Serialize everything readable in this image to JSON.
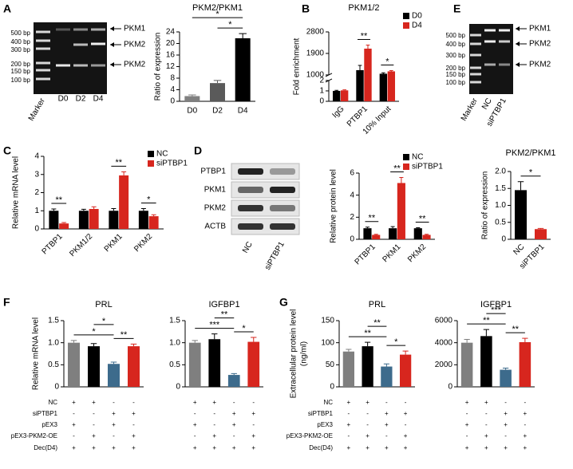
{
  "panel_labels": [
    "A",
    "B",
    "C",
    "D",
    "E",
    "F",
    "G"
  ],
  "gels": [
    {
      "markers": [
        "500 bp",
        "400 bp",
        "300 bp",
        "200 bp",
        "150 bp",
        "100 bp"
      ],
      "lanes": [
        "Marker",
        "D0",
        "D2",
        "D4"
      ],
      "bands": [
        "PKM1",
        "PKM2",
        "PKM2"
      ]
    },
    {
      "markers": [
        "500 bp",
        "400 bp",
        "300 bp",
        "200 bp",
        "150 bp",
        "100 bp"
      ],
      "lanes": [
        "Marker",
        "NC",
        "siPTBP1"
      ],
      "bands": [
        "PKM1",
        "PKM2",
        "PKM2"
      ]
    }
  ],
  "blot": {
    "rows": [
      "PTBP1",
      "PKM1",
      "PKM2",
      "ACTB"
    ],
    "lanes": [
      "NC",
      "siPTBP1"
    ]
  },
  "chart_data": [
    {
      "type": "bar",
      "title": "PKM2/PKM1",
      "y_label": "Ratio of expression",
      "categories": [
        "D0",
        "D2",
        "D4"
      ],
      "values": [
        1.8,
        6.3,
        21.8
      ],
      "errors": [
        0.4,
        0.9,
        1.6
      ],
      "colors": [
        "#808080",
        "#5a5a5a",
        "#000000"
      ],
      "ylim": [
        0,
        24
      ],
      "yticks": [
        0,
        4,
        8,
        12,
        16,
        20,
        24
      ],
      "significance": [
        {
          "between": [
            1,
            2
          ],
          "label": "*"
        },
        {
          "between": [
            0,
            2
          ],
          "label": "*"
        }
      ]
    },
    {
      "type": "bar",
      "title": "PKM1/2",
      "y_label": "Fold enrichment",
      "categories": [
        "IgG",
        "PTBP1",
        "10% Input"
      ],
      "series": [
        {
          "name": "D0",
          "color": "#000000",
          "values": [
            1,
            1200,
            1050
          ],
          "errors": [
            0.05,
            200,
            40
          ]
        },
        {
          "name": "D4",
          "color": "#d7261e",
          "values": [
            1.05,
            2100,
            1150
          ],
          "errors": [
            0.05,
            150,
            30
          ]
        }
      ],
      "ylim": [
        0,
        2800
      ],
      "axis_break": [
        2,
        1000
      ],
      "yticks": [
        0,
        1,
        2,
        1000,
        1900,
        2800
      ],
      "legend": "upper right",
      "significance": [
        {
          "category": 1,
          "label": "**"
        },
        {
          "category": 2,
          "label": "*"
        }
      ]
    },
    {
      "type": "bar",
      "y_label": "Relative mRNA level",
      "categories": [
        "PTBP1",
        "PKM1/2",
        "PKM1",
        "PKM2"
      ],
      "series": [
        {
          "name": "NC",
          "color": "#000000",
          "values": [
            1,
            1,
            1,
            1
          ],
          "errors": [
            0.1,
            0.08,
            0.12,
            0.12
          ]
        },
        {
          "name": "siPTBP1",
          "color": "#d7261e",
          "values": [
            0.3,
            1.1,
            2.95,
            0.7
          ],
          "errors": [
            0.05,
            0.12,
            0.2,
            0.08
          ]
        }
      ],
      "ylim": [
        0,
        4
      ],
      "yticks": [
        0,
        1,
        2,
        3,
        4
      ],
      "legend": "upper right",
      "significance": [
        {
          "category": 0,
          "label": "**"
        },
        {
          "category": 2,
          "label": "**"
        },
        {
          "category": 3,
          "label": "*"
        }
      ]
    },
    {
      "type": "bar",
      "y_label": "Relative protein level",
      "categories": [
        "PTBP1",
        "PKM1",
        "PKM2"
      ],
      "series": [
        {
          "name": "NC",
          "color": "#000000",
          "values": [
            1,
            1,
            1
          ],
          "errors": [
            0.1,
            0.15,
            0.05
          ]
        },
        {
          "name": "siPTBP1",
          "color": "#d7261e",
          "values": [
            0.4,
            5.1,
            0.4
          ],
          "errors": [
            0.05,
            0.5,
            0.05
          ]
        }
      ],
      "ylim": [
        0,
        6
      ],
      "yticks": [
        0,
        2,
        4,
        6
      ],
      "legend": "upper right",
      "significance": [
        {
          "category": 0,
          "label": "**"
        },
        {
          "category": 1,
          "label": "**"
        },
        {
          "category": 2,
          "label": "**"
        }
      ]
    },
    {
      "type": "bar",
      "title": "PKM2/PKM1",
      "y_label": "Ratio of expression",
      "categories": [
        "NC",
        "siPTBP1"
      ],
      "values": [
        1.45,
        0.3
      ],
      "errors": [
        0.25,
        0.02
      ],
      "colors": [
        "#000000",
        "#d7261e"
      ],
      "ylim": [
        0,
        2
      ],
      "yticks": [
        0,
        0.5,
        {
          "value": 1,
          "label": "1.0"
        },
        1.5,
        {
          "value": 2,
          "label": "2.0"
        }
      ],
      "significance": [
        {
          "between": [
            0,
            1
          ],
          "label": "*"
        }
      ]
    },
    {
      "type": "bar",
      "title": "PRL",
      "y_label": "Relative mRNA level",
      "values": [
        1.0,
        0.92,
        0.52,
        0.92
      ],
      "errors": [
        0.05,
        0.06,
        0.04,
        0.05
      ],
      "colors": [
        "#7f7f7f",
        "#000000",
        "#3d6b8c",
        "#d7261e"
      ],
      "ylim": [
        0,
        1.5
      ],
      "yticks": [
        0,
        0.5,
        {
          "value": 1,
          "label": "1.0"
        },
        1.5
      ],
      "significance": [
        {
          "between": [
            0,
            2
          ],
          "label": "*"
        },
        {
          "between": [
            2,
            3
          ],
          "label": "**"
        },
        {
          "between": [
            1,
            2
          ],
          "label": "*"
        }
      ]
    },
    {
      "type": "bar",
      "title": "IGFBP1",
      "values": [
        1.0,
        1.08,
        0.27,
        1.02
      ],
      "errors": [
        0.05,
        0.12,
        0.03,
        0.1
      ],
      "colors": [
        "#7f7f7f",
        "#000000",
        "#3d6b8c",
        "#d7261e"
      ],
      "ylim": [
        0,
        1.5
      ],
      "yticks": [
        0,
        0.5,
        {
          "value": 1,
          "label": "1.0"
        },
        1.5
      ],
      "significance": [
        {
          "between": [
            0,
            2
          ],
          "label": "***"
        },
        {
          "between": [
            2,
            3
          ],
          "label": "*"
        },
        {
          "between": [
            1,
            2
          ],
          "label": "**"
        }
      ]
    },
    {
      "type": "bar",
      "title": "PRL",
      "y_label": [
        "Extracellular protein level",
        "(ng/ml)"
      ],
      "values": [
        80,
        92,
        46,
        73
      ],
      "errors": [
        5,
        9,
        6,
        8
      ],
      "colors": [
        "#7f7f7f",
        "#000000",
        "#3d6b8c",
        "#d7261e"
      ],
      "ylim": [
        0,
        150
      ],
      "yticks": [
        0,
        50,
        100,
        150
      ],
      "significance": [
        {
          "between": [
            0,
            2
          ],
          "label": "**"
        },
        {
          "between": [
            2,
            3
          ],
          "label": "*"
        },
        {
          "between": [
            1,
            2
          ],
          "label": "**"
        }
      ]
    },
    {
      "type": "bar",
      "title": "IGFBP1",
      "values": [
        4000,
        4600,
        1550,
        4050
      ],
      "errors": [
        300,
        600,
        150,
        350
      ],
      "colors": [
        "#7f7f7f",
        "#000000",
        "#3d6b8c",
        "#d7261e"
      ],
      "ylim": [
        0,
        6000
      ],
      "yticks": [
        0,
        2000,
        4000,
        6000
      ],
      "significance": [
        {
          "between": [
            0,
            2
          ],
          "label": "**"
        },
        {
          "between": [
            2,
            3
          ],
          "label": "**"
        },
        {
          "between": [
            1,
            2
          ],
          "label": "***"
        }
      ]
    }
  ],
  "condition_tables": [
    {
      "rows": [
        {
          "label": "NC",
          "signs": [
            "+",
            "+",
            "-",
            "-"
          ]
        },
        {
          "label": "siPTBP1",
          "signs": [
            "-",
            "-",
            "+",
            "+"
          ]
        },
        {
          "label": "pEX3",
          "signs": [
            "+",
            "-",
            "+",
            "-"
          ]
        },
        {
          "label": "pEX3-PKM2-OE",
          "signs": [
            "-",
            "+",
            "-",
            "+"
          ]
        },
        {
          "label": "Dec(D4)",
          "signs": [
            "+",
            "+",
            "+",
            "+"
          ]
        }
      ]
    },
    {
      "rows": [
        {
          "label": "NC",
          "signs": [
            "+",
            "+",
            "-",
            "-"
          ]
        },
        {
          "label": "siPTBP1",
          "signs": [
            "-",
            "-",
            "+",
            "+"
          ]
        },
        {
          "label": "pEX3",
          "signs": [
            "+",
            "-",
            "+",
            "-"
          ]
        },
        {
          "label": "pEX3-PKM2-OE",
          "signs": [
            "-",
            "+",
            "-",
            "+"
          ]
        },
        {
          "label": "Dec(D4)",
          "signs": [
            "+",
            "+",
            "+",
            "+"
          ]
        }
      ]
    }
  ]
}
